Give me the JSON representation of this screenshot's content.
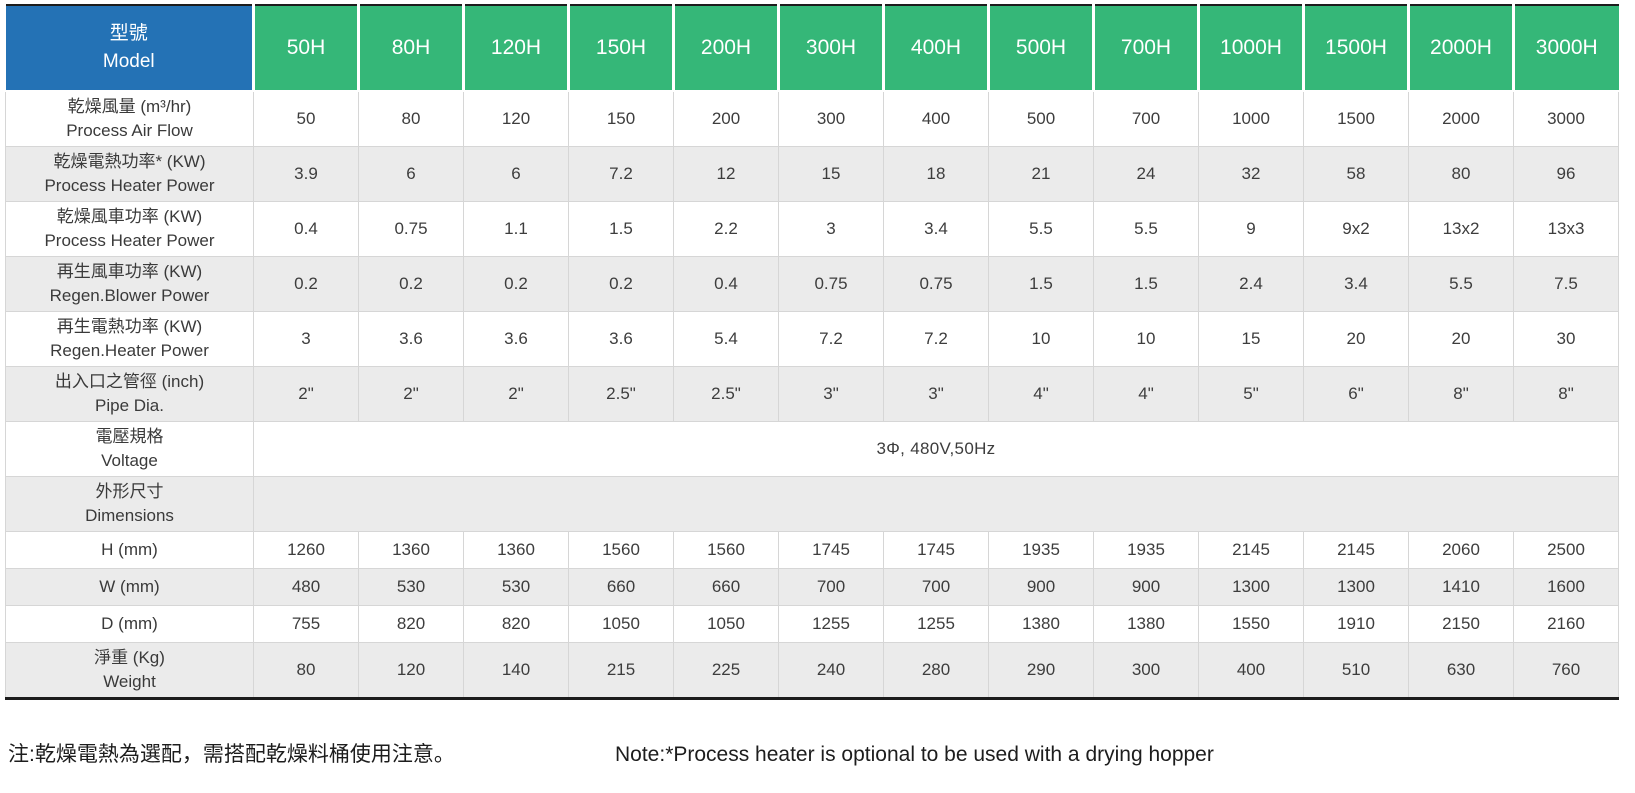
{
  "table": {
    "model_header": {
      "zh": "型號",
      "en": "Model"
    },
    "models": [
      "50H",
      "80H",
      "120H",
      "150H",
      "200H",
      "300H",
      "400H",
      "500H",
      "700H",
      "1000H",
      "1500H",
      "2000H",
      "3000H"
    ],
    "rows": [
      {
        "kind": "data",
        "zh": "乾燥風量 (m³/hr)",
        "en": "Process Air Flow",
        "values": [
          "50",
          "80",
          "120",
          "150",
          "200",
          "300",
          "400",
          "500",
          "700",
          "1000",
          "1500",
          "2000",
          "3000"
        ]
      },
      {
        "kind": "data",
        "zh": "乾燥電熱功率* (KW)",
        "en": "Process Heater Power",
        "values": [
          "3.9",
          "6",
          "6",
          "7.2",
          "12",
          "15",
          "18",
          "21",
          "24",
          "32",
          "58",
          "80",
          "96"
        ]
      },
      {
        "kind": "data",
        "zh": "乾燥風車功率 (KW)",
        "en": "Process Heater Power",
        "values": [
          "0.4",
          "0.75",
          "1.1",
          "1.5",
          "2.2",
          "3",
          "3.4",
          "5.5",
          "5.5",
          "9",
          "9x2",
          "13x2",
          "13x3"
        ]
      },
      {
        "kind": "data",
        "zh": "再生風車功率 (KW)",
        "en": "Regen.Blower Power",
        "values": [
          "0.2",
          "0.2",
          "0.2",
          "0.2",
          "0.4",
          "0.75",
          "0.75",
          "1.5",
          "1.5",
          "2.4",
          "3.4",
          "5.5",
          "7.5"
        ]
      },
      {
        "kind": "data",
        "zh": "再生電熱功率 (KW)",
        "en": "Regen.Heater Power",
        "values": [
          "3",
          "3.6",
          "3.6",
          "3.6",
          "5.4",
          "7.2",
          "7.2",
          "10",
          "10",
          "15",
          "20",
          "20",
          "30"
        ]
      },
      {
        "kind": "data",
        "zh": "出入口之管徑 (inch)",
        "en": "Pipe Dia.",
        "values": [
          "2\"",
          "2\"",
          "2\"",
          "2.5\"",
          "2.5\"",
          "3\"",
          "3\"",
          "4\"",
          "4\"",
          "5\"",
          "6\"",
          "8\"",
          "8\""
        ]
      },
      {
        "kind": "merged",
        "zh": "電壓規格",
        "en": "Voltage",
        "value": "3Φ, 480V,50Hz"
      },
      {
        "kind": "merged",
        "zh": "外形尺寸",
        "en": "Dimensions",
        "value": ""
      },
      {
        "kind": "dim",
        "label": "H (mm)",
        "values": [
          "1260",
          "1360",
          "1360",
          "1560",
          "1560",
          "1745",
          "1745",
          "1935",
          "1935",
          "2145",
          "2145",
          "2060",
          "2500"
        ]
      },
      {
        "kind": "dim",
        "label": "W (mm)",
        "values": [
          "480",
          "530",
          "530",
          "660",
          "660",
          "700",
          "700",
          "900",
          "900",
          "1300",
          "1300",
          "1410",
          "1600"
        ]
      },
      {
        "kind": "dim",
        "label": "D (mm)",
        "values": [
          "755",
          "820",
          "820",
          "1050",
          "1050",
          "1255",
          "1255",
          "1380",
          "1380",
          "1550",
          "1910",
          "2150",
          "2160"
        ]
      },
      {
        "kind": "data",
        "zh": "淨重 (Kg)",
        "en": "Weight",
        "values": [
          "80",
          "120",
          "140",
          "215",
          "225",
          "240",
          "280",
          "290",
          "300",
          "400",
          "510",
          "630",
          "760"
        ]
      }
    ]
  },
  "notes": {
    "zh": "注:乾燥電熱為選配，需搭配乾燥料桶使用注意。",
    "en": "Note:*Process heater is optional to be used with a drying hopper"
  },
  "colors": {
    "header_blue": "#2472B5",
    "header_green": "#35B778",
    "row_alt_grey": "#EBEBEB",
    "cell_border": "#D6D6D6",
    "text_dark": "#3D3D3D"
  }
}
